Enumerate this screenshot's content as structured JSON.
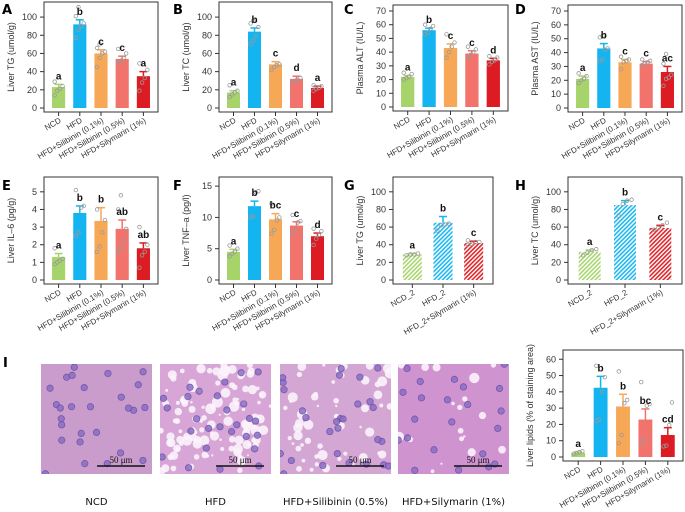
{
  "figure": {
    "histology": {
      "panel_letter": "I",
      "scale_bar_label": "50 μm",
      "images": [
        {
          "caption": "NCD",
          "tissue_color": "#c99ccc",
          "fat_vacuoles": 0.0
        },
        {
          "caption": "HFD",
          "tissue_color": "#d7a6d6",
          "fat_vacuoles": 0.55
        },
        {
          "caption": "HFD+Silibinin (0.5%)",
          "tissue_color": "#d3a6d3",
          "fat_vacuoles": 0.25
        },
        {
          "caption": "HFD+Silymarin (1%)",
          "tissue_color": "#cf93cf",
          "fat_vacuoles": 0.08
        }
      ]
    }
  },
  "chart_data": [
    {
      "id": "A",
      "type": "bar",
      "title": "",
      "xlabel": "",
      "ylabel": "Liver TG (umol/g)",
      "ylim": [
        0,
        110
      ],
      "yticks": [
        0,
        20,
        40,
        60,
        80,
        100
      ],
      "categories": [
        "NCD",
        "HFD",
        "HFD+Silibinin (0.1%)",
        "HFD+Silibinin (0.5%)",
        "HFD+Silymarin (1%)"
      ],
      "values": [
        23,
        92,
        60,
        54,
        35
      ],
      "errors": [
        3,
        5,
        4,
        3,
        5
      ],
      "letters": [
        "a",
        "b",
        "c",
        "c",
        "a"
      ],
      "points": [
        [
          14,
          19,
          21,
          24,
          29
        ],
        [
          77,
          86,
          90,
          93,
          101,
          111
        ],
        [
          45,
          55,
          60,
          62,
          66,
          70
        ],
        [
          50,
          52,
          55,
          60,
          65
        ],
        [
          19,
          28,
          33,
          42,
          49
        ]
      ],
      "hatched": false
    },
    {
      "id": "B",
      "type": "bar",
      "title": "",
      "xlabel": "",
      "ylabel": "Liver TC (umol/g)",
      "ylim": [
        0,
        110
      ],
      "yticks": [
        0,
        20,
        40,
        60,
        80,
        100
      ],
      "categories": [
        "NCD",
        "HFD",
        "HFD+Silibinin (0.1%)",
        "HFD+Silibinin (0.5%)",
        "HFD+Silymarin (1%)"
      ],
      "values": [
        17,
        84,
        48,
        32,
        22
      ],
      "errors": [
        2,
        4,
        3,
        3,
        2
      ],
      "letters": [
        "a",
        "b",
        "c",
        "d",
        "a"
      ],
      "points": [
        [
          12,
          15,
          17,
          19,
          25
        ],
        [
          70,
          74,
          79,
          89,
          93,
          96
        ],
        [
          42,
          45,
          47,
          48
        ],
        [
          28,
          30,
          31,
          33
        ],
        [
          19,
          21,
          22,
          24,
          25
        ]
      ],
      "hatched": false
    },
    {
      "id": "C",
      "type": "bar",
      "title": "",
      "xlabel": "",
      "ylabel": "Plasma ALT (IU/L)",
      "ylim": [
        0,
        70
      ],
      "yticks": [
        0,
        10,
        20,
        30,
        40,
        50,
        60,
        70
      ],
      "categories": [
        "NCD",
        "HFD",
        "HFD+Silibinin (0.1%)",
        "HFD+Silibinin (0.5%)",
        "HFD+Silymarin (1%)"
      ],
      "values": [
        22,
        56,
        43,
        39,
        34
      ],
      "errors": [
        1,
        1.5,
        3,
        2,
        1.5
      ],
      "letters": [
        "a",
        "b",
        "c",
        "c",
        "d"
      ],
      "points": [
        [
          20,
          21,
          22,
          24,
          25
        ],
        [
          53,
          54,
          57,
          59,
          60
        ],
        [
          36,
          40,
          44,
          47,
          53
        ],
        [
          36,
          38,
          40,
          42,
          44
        ],
        [
          31,
          33,
          34,
          36,
          37
        ]
      ],
      "hatched": false
    },
    {
      "id": "D",
      "type": "bar",
      "title": "",
      "xlabel": "",
      "ylabel": "Plasma AST (IU/L)",
      "ylim": [
        0,
        70
      ],
      "yticks": [
        0,
        10,
        20,
        30,
        40,
        50,
        60,
        70
      ],
      "categories": [
        "NCD",
        "HFD",
        "HFD+Silibinin (0.1%)",
        "HFD+Silibinin (0.5%)",
        "HFD+Silymarin (1%)"
      ],
      "values": [
        21,
        43,
        33,
        32,
        26
      ],
      "errors": [
        2,
        3.5,
        2,
        1.5,
        4
      ],
      "letters": [
        "a",
        "b",
        "c",
        "c",
        "ac"
      ],
      "points": [
        [
          18,
          20,
          21,
          23,
          25
        ],
        [
          34,
          35,
          42,
          43,
          51,
          52
        ],
        [
          28,
          33,
          34,
          35,
          37
        ],
        [
          31,
          32,
          33,
          34,
          35
        ],
        [
          16,
          21,
          22,
          24,
          32,
          39
        ]
      ],
      "hatched": false
    },
    {
      "id": "E",
      "type": "bar",
      "title": "",
      "xlabel": "",
      "ylabel": "Liver IL–6 (pg/g)",
      "ylim": [
        0,
        5.5
      ],
      "yticks": [
        0,
        1,
        2,
        3,
        4,
        5
      ],
      "categories": [
        "NCD",
        "HFD",
        "HFD+Silibinin (0.1%)",
        "HFD+Silibinin (0.5%)",
        "HFD+Silymarin (1%)"
      ],
      "values": [
        1.3,
        3.8,
        3.35,
        2.9,
        1.8
      ],
      "errors": [
        0.2,
        0.4,
        0.75,
        0.5,
        0.3
      ],
      "letters": [
        "a",
        "b",
        "b",
        "ab",
        "ab"
      ],
      "points": [
        [
          0.9,
          1.0,
          1.1,
          1.2,
          1.8
        ],
        [
          2.5,
          2.7,
          4.1,
          4.2,
          5.1
        ],
        [
          1.6,
          1.9,
          2.7,
          3.4,
          4.0
        ],
        [
          1.6,
          1.8,
          2.2,
          2.9,
          4.0,
          4.8
        ],
        [
          0.7,
          1.4,
          1.6,
          2.0,
          3.0
        ]
      ],
      "hatched": false
    },
    {
      "id": "F",
      "type": "bar",
      "title": "",
      "xlabel": "",
      "ylabel": "Liver TNF–a (pg/l)",
      "ylim": [
        0,
        15.5
      ],
      "yticks": [
        0,
        5,
        10,
        15
      ],
      "categories": [
        "NCD",
        "HFD",
        "HFD+Silibinin (0.1%)",
        "HFD+Silibinin (0.5%)",
        "HFD+Silymarin (1%)"
      ],
      "values": [
        4.5,
        11.8,
        9.7,
        8.7,
        7.0
      ],
      "errors": [
        0.4,
        0.8,
        0.9,
        0.6,
        0.5
      ],
      "letters": [
        "a",
        "b",
        "bc",
        "c",
        "d"
      ],
      "points": [
        [
          3.8,
          4.2,
          4.5,
          5.0,
          5.5
        ],
        [
          10.0,
          10.2,
          14.0,
          14.2
        ],
        [
          7.4,
          8.0,
          9.5,
          10.0,
          12.2
        ],
        [
          7.3,
          8.0,
          9.2,
          9.4,
          10.4
        ],
        [
          5.6,
          6.6,
          7.2,
          7.8,
          8.2
        ]
      ],
      "hatched": false
    },
    {
      "id": "G",
      "type": "bar",
      "title": "",
      "xlabel": "",
      "ylabel": "Liver TG (umol/g)",
      "ylim": [
        0,
        110
      ],
      "yticks": [
        0,
        20,
        40,
        60,
        80,
        100
      ],
      "categories": [
        "NCD_2",
        "HFD_2",
        "HFD_2+Silymarin (1%)"
      ],
      "values": [
        29,
        65,
        42
      ],
      "errors": [
        1,
        7,
        2
      ],
      "letters": [
        "a",
        "b",
        "c"
      ],
      "points": [
        [
          28,
          29,
          29,
          30
        ],
        [
          56,
          62,
          63,
          64
        ],
        [
          40,
          41,
          43,
          43,
          45
        ]
      ],
      "hatched": true
    },
    {
      "id": "H",
      "type": "bar",
      "title": "",
      "xlabel": "",
      "ylabel": "Liver TC (umol/g)",
      "ylim": [
        0,
        110
      ],
      "yticks": [
        0,
        20,
        40,
        60,
        80,
        100
      ],
      "categories": [
        "NCD_2",
        "HFD_2",
        "HFD_2+Silymarin (1%)"
      ],
      "values": [
        32,
        85,
        59
      ],
      "errors": [
        2,
        5,
        3
      ],
      "letters": [
        "a",
        "b",
        "c"
      ],
      "points": [
        [
          28,
          31,
          34,
          35
        ],
        [
          73,
          86,
          90,
          91
        ],
        [
          57,
          59,
          62,
          65
        ]
      ],
      "hatched": true
    },
    {
      "id": "I",
      "type": "bar",
      "title": "",
      "xlabel": "",
      "ylabel": "Liver lipids (% of staining area)",
      "ylim": [
        0,
        62
      ],
      "yticks": [
        0,
        10,
        20,
        30,
        40,
        50,
        60
      ],
      "categories": [
        "NCD",
        "HFD",
        "HFD+Silibinin (0.1%)",
        "HFD+Silibinin (0.5%)",
        "HFD+Silymarin (1%)"
      ],
      "values": [
        2.5,
        42.5,
        31,
        23,
        13.5
      ],
      "errors": [
        0.5,
        7,
        7.5,
        6.5,
        4.5
      ],
      "letters": [
        "a",
        "b",
        "b",
        "bc",
        "cd"
      ],
      "points": [
        [
          2,
          2.5,
          3,
          3.5
        ],
        [
          22,
          23,
          40,
          49,
          56
        ],
        [
          8.5,
          13.5,
          33,
          35,
          52.5
        ],
        [
          8,
          11.5,
          31.5,
          32.5,
          46
        ],
        [
          6.5,
          7,
          19.5,
          33.5
        ]
      ],
      "hatched": false
    }
  ],
  "colors": {
    "NCD": "#a6d46a",
    "HFD": "#14b4f0",
    "HFD+Silibinin (0.1%)": "#f7a857",
    "HFD+Silibinin (0.5%)": "#f2736b",
    "HFD+Silymarin (1%)": "#dc1c22",
    "NCD_2": "#a6d46a",
    "HFD_2": "#14b4f0",
    "HFD_2+Silymarin (1%)": "#dc1c22",
    "points": "#9a9a9a"
  }
}
